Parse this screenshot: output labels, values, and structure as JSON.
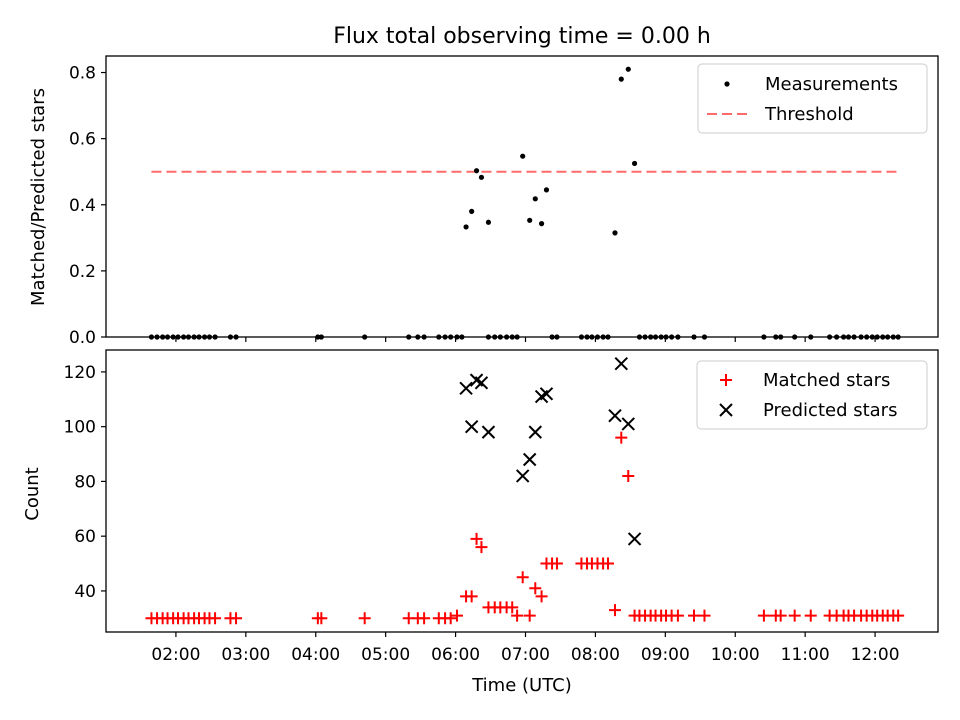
{
  "title": "Flux total observing time = 0.00 h",
  "xlabel": "Time (UTC)",
  "xticks": [
    "02:00",
    "03:00",
    "04:00",
    "05:00",
    "06:00",
    "07:00",
    "08:00",
    "09:00",
    "10:00",
    "11:00",
    "12:00"
  ],
  "chart_data": [
    {
      "type": "scatter",
      "ylabel": "Matched/Predicted stars",
      "ylim": [
        0,
        0.85
      ],
      "yticks": [
        "0.0",
        "0.2",
        "0.4",
        "0.6",
        "0.8"
      ],
      "threshold": {
        "value": 0.5,
        "x_start": 1.65,
        "x_end": 12.35,
        "color": "#ff6b6b",
        "label": "Threshold"
      },
      "legend": {
        "placement": "top-right",
        "entries": [
          "Measurements",
          "Threshold"
        ]
      },
      "series": [
        {
          "name": "Measurements",
          "color": "#000000",
          "x": [
            1.65,
            1.73,
            1.81,
            1.88,
            1.96,
            2.03,
            2.11,
            2.18,
            2.26,
            2.33,
            2.41,
            2.48,
            2.56,
            2.78,
            2.86,
            4.03,
            4.08,
            4.7,
            5.33,
            5.46,
            5.55,
            5.76,
            5.85,
            5.93,
            6.02,
            6.09,
            6.15,
            6.23,
            6.3,
            6.37,
            6.47,
            6.47,
            6.56,
            6.64,
            6.73,
            6.81,
            6.88,
            6.96,
            7.06,
            7.14,
            7.23,
            7.3,
            7.38,
            7.45,
            7.8,
            7.88,
            7.95,
            8.03,
            8.11,
            8.18,
            8.28,
            8.37,
            8.47,
            8.56,
            8.63,
            8.71,
            8.79,
            8.86,
            8.94,
            9.01,
            9.09,
            9.18,
            9.41,
            9.56,
            10.41,
            10.58,
            10.65,
            10.85,
            11.08,
            11.35,
            11.45,
            11.55,
            11.62,
            11.7,
            11.8,
            11.88,
            11.96,
            12.03,
            12.11,
            12.18,
            12.26,
            12.33
          ],
          "y": [
            0,
            0,
            0,
            0,
            0,
            0,
            0,
            0,
            0,
            0,
            0,
            0,
            0,
            0,
            0,
            0,
            0,
            0,
            0,
            0,
            0,
            0,
            0,
            0,
            0,
            0,
            0.333,
            0.38,
            0.503,
            0.483,
            0.347,
            0,
            0,
            0,
            0,
            0,
            0,
            0.547,
            0.353,
            0.418,
            0.343,
            0.445,
            0,
            0,
            0,
            0,
            0,
            0,
            0,
            0,
            0.315,
            0.78,
            0.81,
            0.525,
            0,
            0,
            0,
            0,
            0,
            0,
            0,
            0,
            0,
            0,
            0,
            0,
            0,
            0,
            0,
            0,
            0,
            0,
            0,
            0,
            0,
            0,
            0,
            0,
            0,
            0,
            0,
            0
          ]
        }
      ]
    },
    {
      "type": "scatter",
      "ylabel": "Count",
      "ylim": [
        25,
        128
      ],
      "yticks": [
        "40",
        "60",
        "80",
        "100",
        "120"
      ],
      "legend": {
        "placement": "top-right",
        "entries": [
          "Matched stars",
          "Predicted stars"
        ]
      },
      "series": [
        {
          "name": "Matched stars",
          "color": "#ff0000",
          "marker": "plus",
          "x": [
            1.65,
            1.73,
            1.81,
            1.88,
            1.96,
            2.03,
            2.11,
            2.18,
            2.26,
            2.33,
            2.41,
            2.48,
            2.56,
            2.78,
            2.86,
            4.03,
            4.08,
            4.7,
            5.33,
            5.46,
            5.55,
            5.76,
            5.85,
            5.93,
            6.02,
            6.15,
            6.23,
            6.3,
            6.37,
            6.47,
            6.56,
            6.64,
            6.73,
            6.81,
            6.88,
            6.96,
            7.06,
            7.14,
            7.23,
            7.3,
            7.38,
            7.45,
            7.8,
            7.88,
            7.95,
            8.03,
            8.11,
            8.18,
            8.28,
            8.37,
            8.47,
            8.56,
            8.63,
            8.71,
            8.79,
            8.86,
            8.94,
            9.01,
            9.09,
            9.18,
            9.41,
            9.56,
            10.41,
            10.58,
            10.65,
            10.85,
            11.08,
            11.35,
            11.45,
            11.55,
            11.62,
            11.7,
            11.8,
            11.88,
            11.96,
            12.03,
            12.11,
            12.18,
            12.26,
            12.33
          ],
          "y": [
            30,
            30,
            30,
            30,
            30,
            30,
            30,
            30,
            30,
            30,
            30,
            30,
            30,
            30,
            30,
            30,
            30,
            30,
            30,
            30,
            30,
            30,
            30,
            30,
            31,
            38,
            38,
            59,
            56,
            34,
            34,
            34,
            34,
            34,
            31,
            45,
            31,
            41,
            38,
            50,
            50,
            50,
            50,
            50,
            50,
            50,
            50,
            50,
            33,
            96,
            82,
            31,
            31,
            31,
            31,
            31,
            31,
            31,
            31,
            31,
            31,
            31,
            31,
            31,
            31,
            31,
            31,
            31,
            31,
            31,
            31,
            31,
            31,
            31,
            31,
            31,
            31,
            31,
            31,
            31
          ]
        },
        {
          "name": "Predicted stars",
          "color": "#000000",
          "marker": "x",
          "x": [
            6.15,
            6.23,
            6.3,
            6.37,
            6.47,
            6.96,
            7.06,
            7.14,
            7.23,
            7.3,
            8.28,
            8.37,
            8.47,
            8.56
          ],
          "y": [
            114,
            100,
            117,
            116,
            98,
            82,
            88,
            98,
            111,
            112,
            104,
            123,
            101,
            59
          ]
        }
      ]
    }
  ]
}
